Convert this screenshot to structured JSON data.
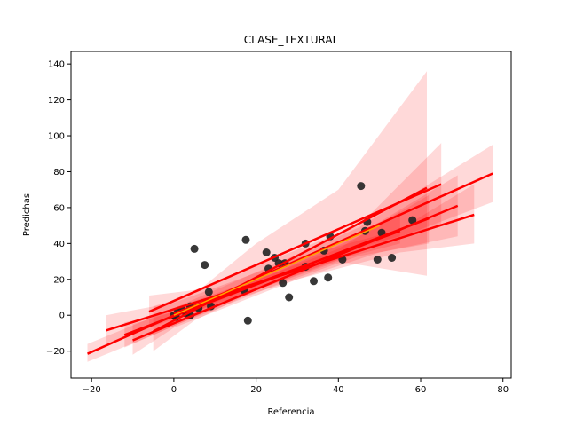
{
  "chart_data": {
    "type": "scatter",
    "title": "CLASE_TEXTURAL",
    "xlabel": "Referencia",
    "ylabel": "Predichas",
    "xlim": [
      -25,
      82
    ],
    "ylim": [
      -35,
      147
    ],
    "x_ticks": [
      -20,
      0,
      20,
      40,
      60,
      80
    ],
    "y_ticks": [
      -20,
      0,
      20,
      40,
      60,
      80,
      100,
      120,
      140
    ],
    "grid": false,
    "legend": "none",
    "colors": {
      "points": "#222222",
      "regression_line": "#ff0000",
      "confidence_band": "#ff0000",
      "identity_line": "#ffa500"
    },
    "points": [
      {
        "x": 0,
        "y": 0
      },
      {
        "x": 0.5,
        "y": -1
      },
      {
        "x": 1,
        "y": 2
      },
      {
        "x": 2,
        "y": 3
      },
      {
        "x": 3,
        "y": 1
      },
      {
        "x": 4,
        "y": 5
      },
      {
        "x": 4,
        "y": 0
      },
      {
        "x": 5,
        "y": 37
      },
      {
        "x": 6,
        "y": 4
      },
      {
        "x": 7.5,
        "y": 28
      },
      {
        "x": 8.5,
        "y": 13
      },
      {
        "x": 9,
        "y": 5
      },
      {
        "x": 17,
        "y": 14
      },
      {
        "x": 17.5,
        "y": 42
      },
      {
        "x": 18,
        "y": -3
      },
      {
        "x": 22.5,
        "y": 35
      },
      {
        "x": 23,
        "y": 26
      },
      {
        "x": 24.5,
        "y": 32
      },
      {
        "x": 25.5,
        "y": 29
      },
      {
        "x": 26.5,
        "y": 18
      },
      {
        "x": 27,
        "y": 29
      },
      {
        "x": 28,
        "y": 10
      },
      {
        "x": 32,
        "y": 40
      },
      {
        "x": 32,
        "y": 27
      },
      {
        "x": 34,
        "y": 19
      },
      {
        "x": 36.5,
        "y": 36
      },
      {
        "x": 37.5,
        "y": 21
      },
      {
        "x": 38,
        "y": 44
      },
      {
        "x": 41,
        "y": 31
      },
      {
        "x": 45.5,
        "y": 72
      },
      {
        "x": 46.5,
        "y": 47
      },
      {
        "x": 47,
        "y": 52
      },
      {
        "x": 49.5,
        "y": 31
      },
      {
        "x": 50.5,
        "y": 46
      },
      {
        "x": 53,
        "y": 32
      },
      {
        "x": 58,
        "y": 53
      }
    ],
    "series": [
      {
        "x": [
          -21,
          77.5
        ],
        "y": [
          -21.5,
          79
        ],
        "band": {
          "x": [
            -21,
            -5,
            20,
            45,
            77.5
          ],
          "lower": [
            -26,
            -11,
            14,
            35,
            63
          ],
          "upper": [
            -16,
            -1,
            24,
            49,
            95
          ]
        }
      },
      {
        "x": [
          -16.5,
          73
        ],
        "y": [
          -8.5,
          56
        ],
        "band": {
          "x": [
            -16.5,
            0,
            30,
            55,
            73
          ],
          "lower": [
            -16,
            -2,
            20,
            35,
            40
          ],
          "upper": [
            0,
            7,
            32,
            48,
            73
          ]
        }
      },
      {
        "x": [
          -10,
          69
        ],
        "y": [
          -14,
          61
        ],
        "band": {
          "x": [
            -10,
            0,
            30,
            50,
            69
          ],
          "lower": [
            -22,
            -7,
            20,
            35,
            44
          ],
          "upper": [
            -5,
            2,
            30,
            52,
            78
          ]
        }
      },
      {
        "x": [
          -12,
          62
        ],
        "y": [
          -11,
          54
        ],
        "band": {
          "x": [
            -12,
            0,
            25,
            45,
            62
          ],
          "lower": [
            -18,
            -6,
            17,
            33,
            40
          ],
          "upper": [
            -4,
            2,
            24,
            44,
            67
          ]
        }
      },
      {
        "x": [
          -6,
          65
        ],
        "y": [
          2,
          73
        ],
        "band": {
          "x": [
            -6,
            5,
            25,
            45,
            65
          ],
          "lower": [
            -5,
            2,
            22,
            38,
            50
          ],
          "upper": [
            11,
            14,
            32,
            50,
            96
          ]
        }
      },
      {
        "x": [
          0,
          55
        ],
        "y": [
          1,
          47
        ],
        "band": {
          "x": [
            0,
            10,
            25,
            40,
            55
          ],
          "lower": [
            -2,
            6,
            19,
            31,
            40
          ],
          "upper": [
            4,
            12,
            24,
            37,
            58
          ]
        }
      },
      {
        "x": [
          -5,
          61.5
        ],
        "y": [
          -9,
          71
        ],
        "band": {
          "x": [
            -5,
            5,
            20,
            40,
            61.5
          ],
          "lower": [
            -20,
            -3,
            14,
            30,
            22
          ],
          "upper": [
            5,
            12,
            40,
            70,
            136
          ]
        }
      }
    ],
    "identity_line": {
      "x": [
        0,
        50
      ],
      "y": [
        0,
        50
      ]
    }
  }
}
